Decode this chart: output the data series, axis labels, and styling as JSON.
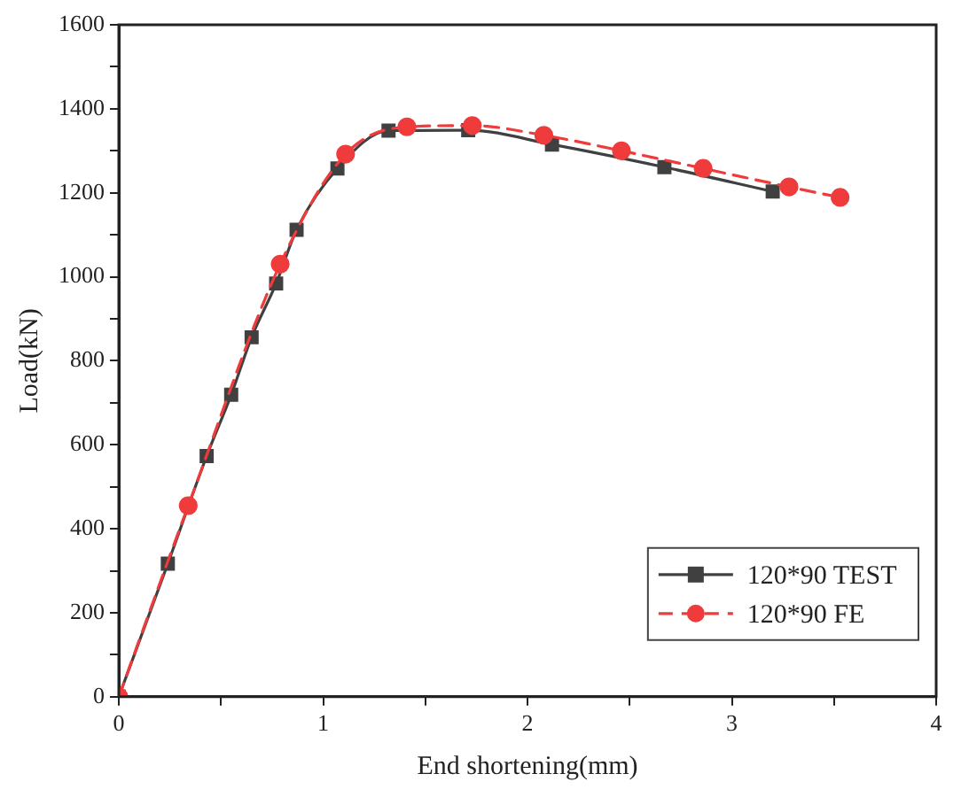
{
  "chart_data": {
    "type": "line",
    "xlabel": "End shortening(mm)",
    "ylabel": "Load(kN)",
    "xlim": [
      0,
      4
    ],
    "xticks": [
      0,
      {
        "value": 0.5,
        "label": null
      },
      1,
      {
        "value": 1.5,
        "label": null
      },
      2,
      {
        "value": 2.5,
        "label": null
      },
      3,
      {
        "value": 3.5,
        "label": null
      },
      4
    ],
    "ylim": [
      0,
      1600
    ],
    "yticks": [
      0,
      {
        "value": 100,
        "label": null
      },
      200,
      {
        "value": 300,
        "label": null
      },
      400,
      {
        "value": 500,
        "label": null
      },
      600,
      {
        "value": 700,
        "label": null
      },
      800,
      {
        "value": 900,
        "label": null
      },
      1000,
      {
        "value": 1100,
        "label": null
      },
      1200,
      {
        "value": 1300,
        "label": null
      },
      1400,
      {
        "value": 1500,
        "label": null
      },
      1600
    ],
    "grid": false,
    "legend": "bottom right",
    "series": [
      {
        "name": "120*90 TEST",
        "color": "#404040",
        "marker": "square",
        "line_style": "solid",
        "x": [
          0,
          0.24,
          0.43,
          0.55,
          0.65,
          0.77,
          0.87,
          1.07,
          1.32,
          1.71,
          2.12,
          2.67,
          3.2
        ],
        "values": [
          0,
          317,
          573,
          719,
          856,
          984,
          1112,
          1258,
          1348,
          1349,
          1315,
          1261,
          1203
        ]
      },
      {
        "name": "120*90 FE",
        "color": "#ef3b3b",
        "marker": "circle",
        "line_style": "dashed",
        "x": [
          0,
          0.34,
          0.79,
          1.11,
          1.41,
          1.73,
          2.08,
          2.46,
          2.86,
          3.28,
          3.53
        ],
        "values": [
          0,
          455,
          1030,
          1292,
          1357,
          1360,
          1337,
          1300,
          1258,
          1214,
          1189
        ]
      }
    ]
  }
}
